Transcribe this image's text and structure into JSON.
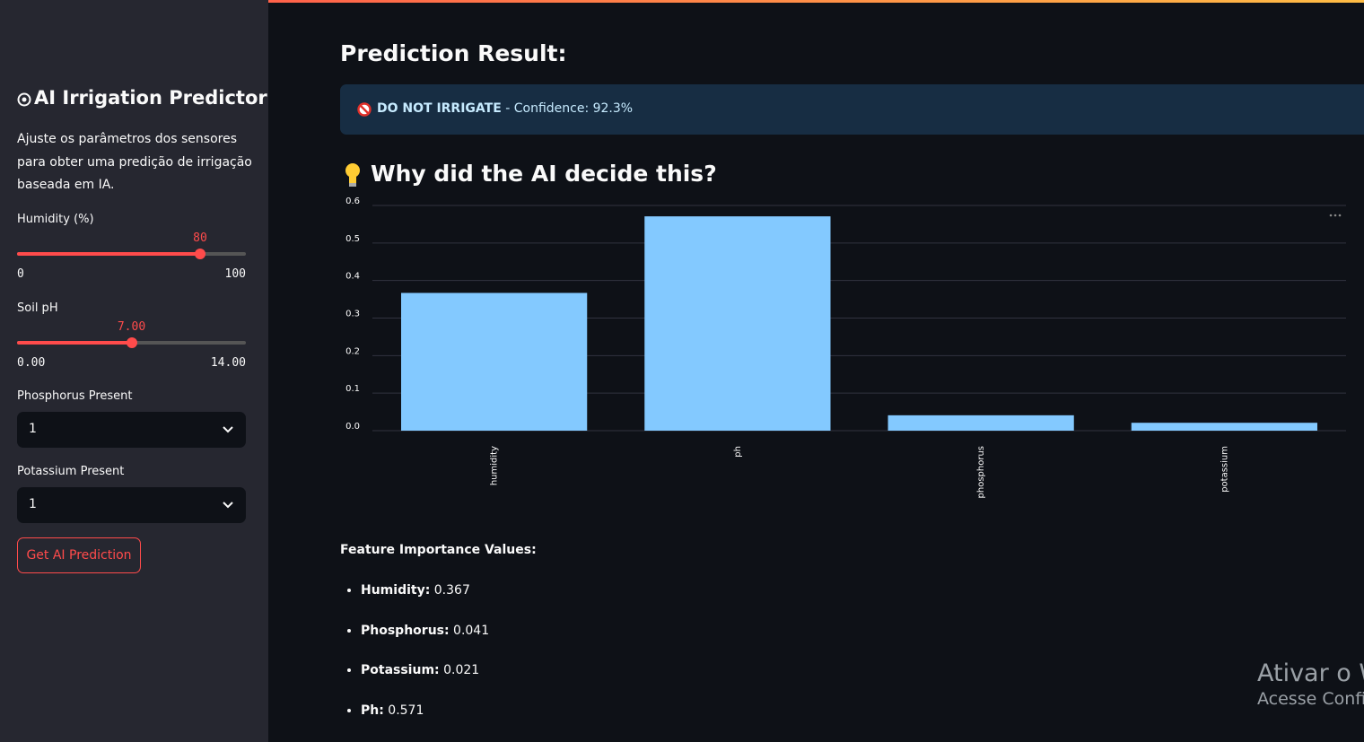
{
  "sidebar": {
    "title": "AI Irrigation Predictor",
    "description": "Ajuste os parâmetros dos sensores para obter uma predição de irrigação baseada em IA.",
    "humidity": {
      "label": "Humidity (%)",
      "value": 80,
      "min": 0,
      "max": 100
    },
    "ph": {
      "label": "Soil pH",
      "value": {
        "value": 7,
        "label": "7.00"
      },
      "min": {
        "value": 0,
        "label": "0.00"
      },
      "max": {
        "value": 14,
        "label": "14.00"
      }
    },
    "phosphorus": {
      "label": "Phosphorus Present",
      "value": 1
    },
    "potassium": {
      "label": "Potassium Present",
      "value": 1
    },
    "button": "Get AI Prediction"
  },
  "main": {
    "heading": "Prediction Result:",
    "result_status": "DO NOT IRRIGATE",
    "result_detail": "- Confidence: 92.3%",
    "chart_heading": "Why did the AI decide this?",
    "importance_heading": "Feature Importance Values:",
    "importance": [
      {
        "name": "Humidity:",
        "value": 0.367
      },
      {
        "name": "Phosphorus:",
        "value": 0.041
      },
      {
        "name": "Potassium:",
        "value": 0.021
      },
      {
        "name": "Ph:",
        "value": 0.571
      }
    ]
  },
  "chart_data": {
    "type": "bar",
    "categories": [
      "humidity",
      "ph",
      "phosphorus",
      "potassium"
    ],
    "values": [
      0.367,
      0.571,
      0.041,
      0.021
    ],
    "color": "#83c9ff",
    "ylim": [
      0,
      0.6
    ],
    "yticks": [
      {
        "value": 0,
        "label": "0.0"
      },
      0.1,
      0.2,
      0.3,
      0.4,
      0.5,
      0.6
    ],
    "grid": true
  },
  "watermark": {
    "line1": "Ativar o Windows",
    "line2": "Acesse Configurações para ativar o Windows."
  }
}
